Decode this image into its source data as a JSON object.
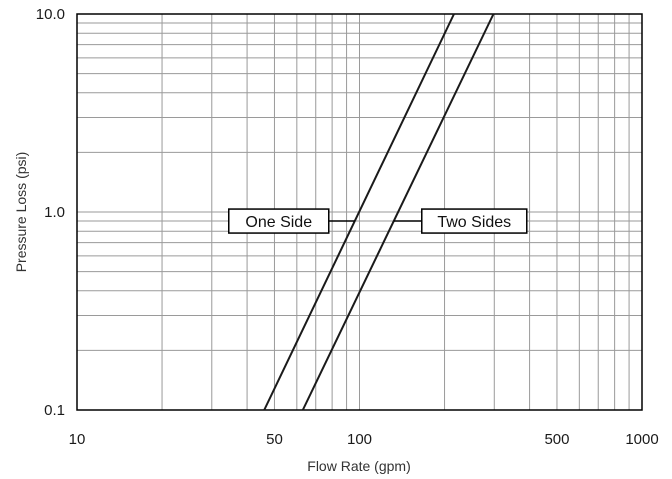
{
  "chart_data": {
    "type": "line",
    "x_scale": "log",
    "y_scale": "log",
    "xlim": [
      10,
      1000
    ],
    "ylim": [
      0.1,
      10
    ],
    "xlabel": "Flow Rate (gpm)",
    "ylabel": "Pressure Loss (psi)",
    "x_tick_labels": [
      "10",
      "50",
      "100",
      "500",
      "1000"
    ],
    "y_tick_labels": [
      "0.1",
      "1.0",
      "10.0"
    ],
    "grid": true,
    "series": [
      {
        "name": "One Side",
        "points": [
          [
            46,
            0.1
          ],
          [
            216,
            10
          ]
        ]
      },
      {
        "name": "Two Sides",
        "points": [
          [
            63,
            0.1
          ],
          [
            298,
            10
          ]
        ]
      }
    ],
    "annotations": [
      {
        "text": "One Side",
        "series": "One Side"
      },
      {
        "text": "Two Sides",
        "series": "Two Sides"
      }
    ],
    "colors": {
      "line": "#1a1a1a",
      "grid": "#9a9a9a",
      "frame": "#000000"
    }
  }
}
